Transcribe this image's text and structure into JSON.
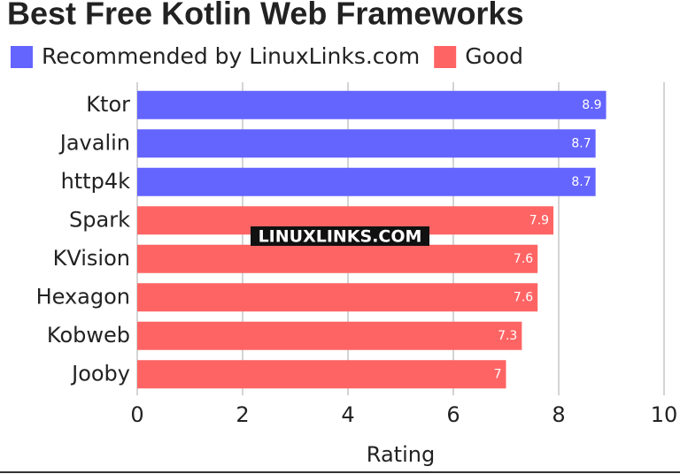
{
  "chart_data": {
    "type": "bar",
    "orientation": "horizontal",
    "title": "Best Free Kotlin Web Frameworks",
    "categories": [
      "Ktor",
      "Javalin",
      "http4k",
      "Spark",
      "KVision",
      "Hexagon",
      "Kobweb",
      "Jooby"
    ],
    "series": [
      {
        "name": "Recommended by LinuxLinks.com",
        "color": "#6464ff",
        "values": [
          8.9,
          8.7,
          8.7,
          null,
          null,
          null,
          null,
          null
        ]
      },
      {
        "name": "Good",
        "color": "#ff6464",
        "values": [
          null,
          null,
          null,
          7.9,
          7.6,
          7.6,
          7.3,
          7
        ]
      }
    ],
    "xlabel": "Rating",
    "xlim": [
      0,
      10
    ],
    "xticks": [
      0,
      2,
      4,
      6,
      8,
      10
    ],
    "grid": true,
    "annotation": "LINUXLINKS.COM"
  }
}
